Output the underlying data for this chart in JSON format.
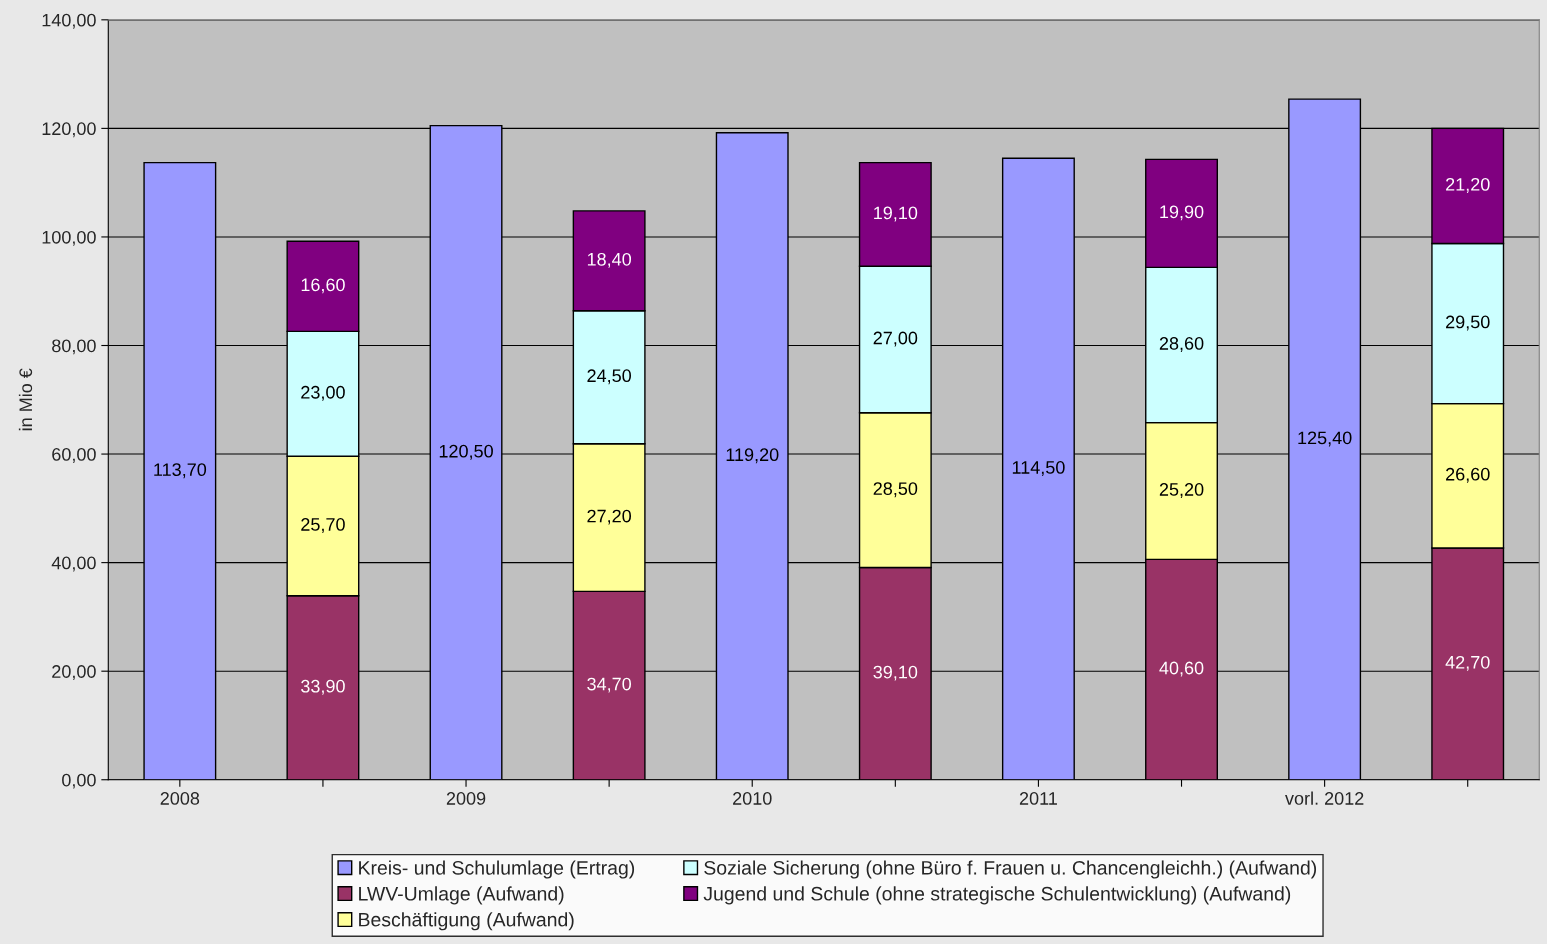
{
  "chart_data": {
    "type": "bar",
    "stacked": true,
    "ylabel": "in Mio €",
    "categories": [
      "2008",
      null,
      "2009",
      null,
      "2010",
      null,
      "2011",
      null,
      "vorl. 2012",
      null
    ],
    "series": [
      {
        "name": "Kreis- und Schulumlage (Ertrag)",
        "color": "#9999ff",
        "values": [
          113.7,
          null,
          120.5,
          null,
          119.2,
          null,
          114.5,
          null,
          125.4,
          null
        ],
        "value_labels": [
          "113,70",
          null,
          "120,50",
          null,
          "119,20",
          null,
          "114,50",
          null,
          "125,40",
          null
        ]
      },
      {
        "name": "LWV-Umlage (Aufwand)",
        "color": "#993366",
        "values": [
          null,
          33.9,
          null,
          34.7,
          null,
          39.1,
          null,
          40.6,
          null,
          42.7
        ],
        "value_labels": [
          null,
          "33,90",
          null,
          "34,70",
          null,
          "39,10",
          null,
          "40,60",
          null,
          "42,70"
        ]
      },
      {
        "name": "Beschäftigung (Aufwand)",
        "color": "#ffff99",
        "values": [
          null,
          25.7,
          null,
          27.2,
          null,
          28.5,
          null,
          25.2,
          null,
          26.6
        ],
        "value_labels": [
          null,
          "25,70",
          null,
          "27,20",
          null,
          "28,50",
          null,
          "25,20",
          null,
          "26,60"
        ]
      },
      {
        "name": "Soziale Sicherung (ohne Büro f. Frauen u. Chancengleichh.) (Aufwand)",
        "color": "#ccffff",
        "values": [
          null,
          23.0,
          null,
          24.5,
          null,
          27.0,
          null,
          28.6,
          null,
          29.5
        ],
        "value_labels": [
          null,
          "23,00",
          null,
          "24,50",
          null,
          "27,00",
          null,
          "28,60",
          null,
          "29,50"
        ]
      },
      {
        "name": "Jugend und Schule (ohne strategische Schulentwicklung) (Aufwand)",
        "color": "#800080",
        "values": [
          null,
          16.6,
          null,
          18.4,
          null,
          19.1,
          null,
          19.9,
          null,
          21.2
        ],
        "value_labels": [
          null,
          "16,60",
          null,
          "18,40",
          null,
          "19,10",
          null,
          "19,90",
          null,
          "21,20"
        ]
      }
    ],
    "ylim": [
      0,
      140
    ],
    "yticks": [
      {
        "value": 0,
        "label": "0,00"
      },
      {
        "value": 20,
        "label": "20,00"
      },
      {
        "value": 40,
        "label": "40,00"
      },
      {
        "value": 60,
        "label": "60,00"
      },
      {
        "value": 80,
        "label": "80,00"
      },
      {
        "value": 100,
        "label": "100,00"
      },
      {
        "value": 120,
        "label": "120,00"
      },
      {
        "value": 140,
        "label": "140,00"
      }
    ],
    "grid": "y",
    "legend": "bottom"
  }
}
